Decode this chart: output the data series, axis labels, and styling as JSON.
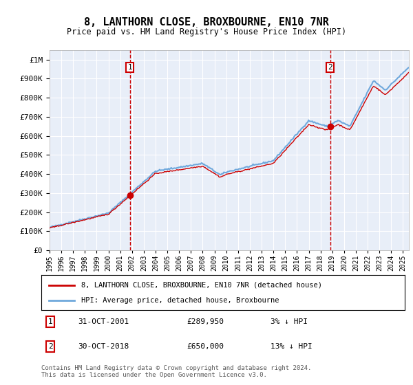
{
  "title": "8, LANTHORN CLOSE, BROXBOURNE, EN10 7NR",
  "subtitle": "Price paid vs. HM Land Registry's House Price Index (HPI)",
  "ytick_values": [
    0,
    100000,
    200000,
    300000,
    400000,
    500000,
    600000,
    700000,
    800000,
    900000,
    1000000
  ],
  "ytick_labels": [
    "£0",
    "£100K",
    "£200K",
    "£300K",
    "£400K",
    "£500K",
    "£600K",
    "£700K",
    "£800K",
    "£900K",
    "£1M"
  ],
  "ylim": [
    0,
    1050000
  ],
  "xlim_start": 1995.0,
  "xlim_end": 2025.5,
  "background_color": "#e8eef8",
  "grid_color": "#ffffff",
  "transaction1_date": 2001.83,
  "transaction1_price": 289950,
  "transaction2_date": 2018.83,
  "transaction2_price": 650000,
  "transaction1_label": "1",
  "transaction2_label": "2",
  "legend_line1": "8, LANTHORN CLOSE, BROXBOURNE, EN10 7NR (detached house)",
  "legend_line2": "HPI: Average price, detached house, Broxbourne",
  "note1_label": "1",
  "note1_date": "31-OCT-2001",
  "note1_price": "£289,950",
  "note1_pct": "3% ↓ HPI",
  "note2_label": "2",
  "note2_date": "30-OCT-2018",
  "note2_price": "£650,000",
  "note2_pct": "13% ↓ HPI",
  "footer": "Contains HM Land Registry data © Crown copyright and database right 2024.\nThis data is licensed under the Open Government Licence v3.0.",
  "hpi_color": "#6fa8dc",
  "price_color": "#cc0000",
  "vline_color": "#cc0000"
}
